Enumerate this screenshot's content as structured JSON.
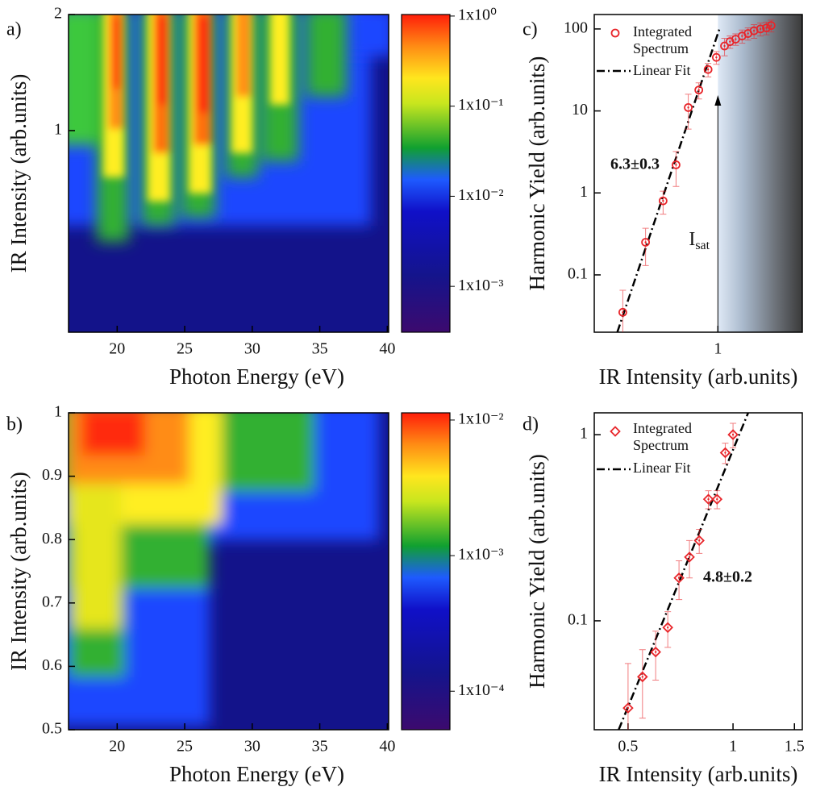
{
  "chart_data": [
    {
      "type": "heatmap",
      "panel_label": "a)",
      "xlabel": "Photon Energy (eV)",
      "ylabel": "IR Intensity (arb.units)",
      "xlim": [
        16.4,
        40.1
      ],
      "xticks": [
        20,
        25,
        30,
        35,
        40
      ],
      "ylim": [
        0.3,
        2
      ],
      "yticks": [
        1,
        2
      ],
      "log_y": true,
      "colorbar": {
        "lim": [
          0.00031,
          1.04
        ],
        "log": true,
        "ticks": [
          {
            "value": 1,
            "label": "1x10⁰"
          },
          {
            "value": 0.1,
            "label": "1x10⁻¹"
          },
          {
            "value": 0.01,
            "label": "1x10⁻²"
          },
          {
            "value": 0.001,
            "label": "1x10⁻³"
          }
        ]
      }
    },
    {
      "type": "heatmap",
      "panel_label": "b)",
      "xlabel": "Photon Energy (eV)",
      "ylabel": "IR Intensity (arb.units)",
      "xlim": [
        16.4,
        40.1
      ],
      "xticks": [
        20,
        25,
        30,
        35,
        40
      ],
      "ylim": [
        0.5,
        1
      ],
      "yticks": [
        0.5,
        0.6,
        0.7,
        0.8,
        0.9,
        1
      ],
      "log_y": false,
      "colorbar": {
        "lim": [
          5.2e-05,
          0.0113
        ],
        "log": true,
        "ticks": [
          {
            "value": 0.01,
            "label": "1x10⁻²"
          },
          {
            "value": 0.001,
            "label": "1x10⁻³"
          },
          {
            "value": 0.0001,
            "label": "1x10⁻⁴"
          }
        ]
      }
    },
    {
      "type": "scatter",
      "panel_label": "c)",
      "xlabel": "IR Intensity (arb.units)",
      "ylabel": "Harmonic Yield (arb.units)",
      "xlim": [
        0.2,
        3
      ],
      "xticks": [
        1
      ],
      "ylim": [
        0.02,
        150
      ],
      "yticks": [
        0.1,
        1,
        10,
        100
      ],
      "log_x": true,
      "log_y": true,
      "series": [
        {
          "name": "Integrated Spectrum",
          "color": "#e8252a",
          "marker": "circle",
          "x": [
            0.29,
            0.39,
            0.49,
            0.58,
            0.68,
            0.78,
            0.88,
            0.98,
            1.09,
            1.17,
            1.26,
            1.37,
            1.48,
            1.6,
            1.74,
            1.88,
            2.0
          ],
          "values": [
            0.035,
            0.25,
            0.8,
            2.2,
            11,
            18,
            32,
            45,
            62,
            70,
            75,
            82,
            88,
            95,
            100,
            103,
            110
          ],
          "errors": [
            0.03,
            0.12,
            0.25,
            1,
            5,
            4,
            6,
            8,
            15,
            12,
            12,
            15,
            15,
            18,
            18,
            18,
            18
          ]
        }
      ],
      "fit": {
        "name": "Linear Fit",
        "x": [
          0.27,
          1.02
        ],
        "values": [
          0.02,
          100
        ]
      },
      "slope_label": "6.3±0.3",
      "threshold_label": {
        "main": "I",
        "sub": "sat"
      }
    },
    {
      "type": "scatter",
      "panel_label": "d)",
      "xlabel": "IR Intensity (arb.units)",
      "ylabel": "Harmonic Yield (arb.units)",
      "xlim": [
        0.4,
        1.58
      ],
      "xticks": [
        0.5,
        1,
        1.5
      ],
      "ylim": [
        0.026,
        1.31
      ],
      "yticks": [
        0.1,
        1
      ],
      "log_x": true,
      "log_y": true,
      "series": [
        {
          "name": "Integrated Spectrum",
          "color": "#e8252a",
          "marker": "diamond",
          "x": [
            0.5,
            0.55,
            0.6,
            0.65,
            0.7,
            0.75,
            0.8,
            0.85,
            0.9,
            0.95,
            1.0
          ],
          "values": [
            0.034,
            0.05,
            0.068,
            0.092,
            0.17,
            0.22,
            0.27,
            0.45,
            0.45,
            0.8,
            1.0
          ],
          "errors": [
            0.025,
            0.02,
            0.02,
            0.02,
            0.04,
            0.05,
            0.04,
            0.05,
            0.05,
            0.1,
            0.15
          ]
        }
      ],
      "fit": {
        "name": "Linear Fit",
        "x": [
          0.47,
          1.105
        ],
        "values": [
          0.026,
          1.31
        ]
      },
      "slope_label": "4.8±0.2"
    }
  ]
}
